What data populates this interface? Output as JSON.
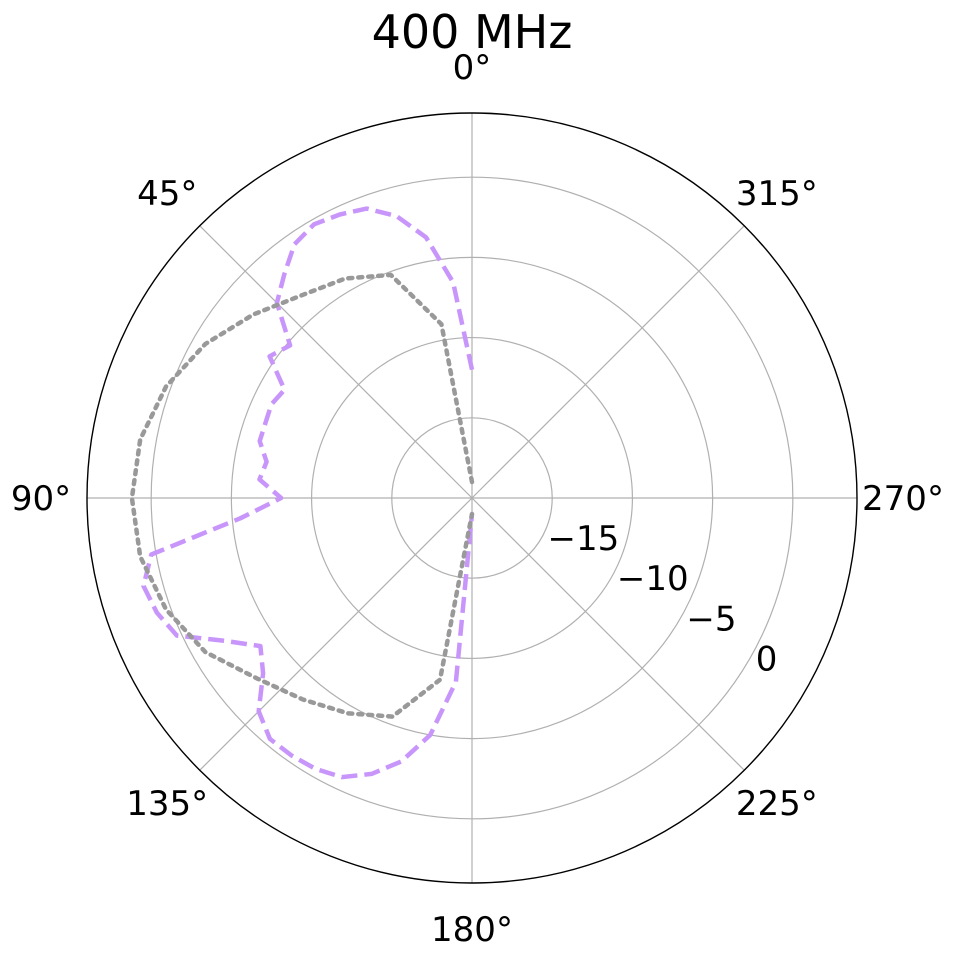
{
  "chart_data": {
    "type": "polar-line",
    "title": "400 MHz",
    "theta_direction": "counterclockwise",
    "theta_zero": "top",
    "angle_tick_labels": [
      "0°",
      "45°",
      "90°",
      "135°",
      "180°",
      "225°",
      "270°",
      "315°"
    ],
    "angle_ticks_deg": [
      0,
      45,
      90,
      135,
      180,
      225,
      270,
      315
    ],
    "radial_range": [
      -20,
      4
    ],
    "radial_ticks": [
      -15,
      -10,
      -5,
      0
    ],
    "radial_tick_labels": [
      "−15",
      "−10",
      "−5",
      "0"
    ],
    "radial_label_angle_deg": 240,
    "grid": true,
    "series": [
      {
        "color": "#c896fa",
        "linestyle": "dashed",
        "angles_deg": [
          0,
          5,
          10,
          15,
          20,
          25,
          30,
          35,
          40,
          45,
          50,
          55,
          60,
          65,
          70,
          75,
          80,
          85,
          90,
          95,
          100,
          105,
          110,
          115,
          120,
          125,
          130,
          135,
          140,
          145,
          150,
          155,
          160,
          165,
          170,
          175,
          180
        ],
        "values": [
          -12.0,
          -6.5,
          -3.5,
          -1.8,
          -0.8,
          -0.5,
          -0.3,
          -0.7,
          -1.8,
          -2.8,
          -5.2,
          -4.6,
          -6.5,
          -6.2,
          -6.3,
          -6.3,
          -7.0,
          -6.7,
          -8.1,
          -5.5,
          0.3,
          1.2,
          0.9,
          0.3,
          -2.2,
          -3.9,
          -3.0,
          -1.2,
          -0.4,
          -0.4,
          -0.5,
          -0.8,
          -1.7,
          -3.0,
          -5.0,
          -8.5,
          -19.0
        ]
      },
      {
        "color": "#999999",
        "linestyle": "dotted",
        "angles_deg": [
          0,
          10,
          20,
          30,
          40,
          50,
          60,
          70,
          80,
          90,
          100,
          110,
          120,
          130,
          140,
          150,
          160,
          170,
          180
        ],
        "values": [
          -19.0,
          -9.0,
          -5.2,
          -4.2,
          -3.5,
          -2.2,
          -0.8,
          0.3,
          1.0,
          1.2,
          1.0,
          0.3,
          -0.8,
          -2.5,
          -3.6,
          -4.5,
          -5.5,
          -8.5,
          -19.0
        ]
      }
    ]
  }
}
